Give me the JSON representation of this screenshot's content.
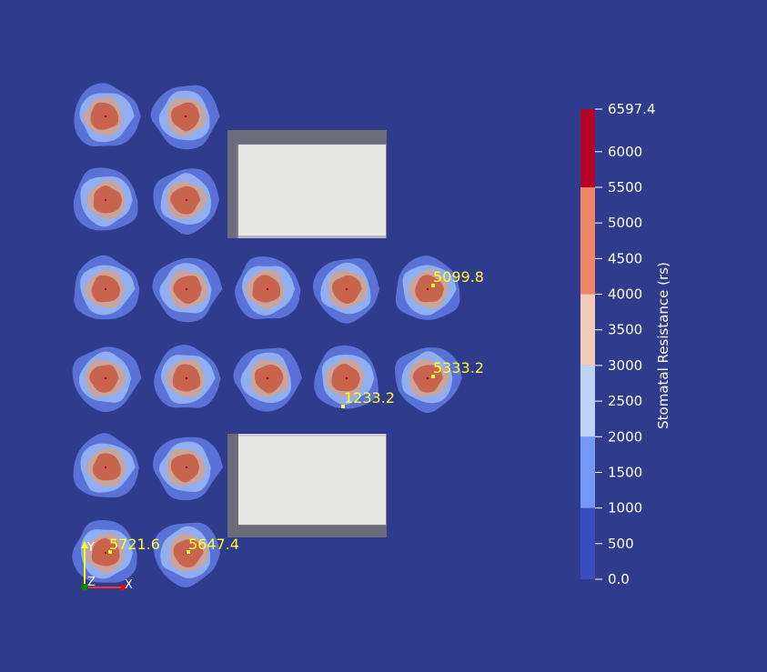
{
  "colors": {
    "background": "#2f3b8c",
    "probe_label": "#ffff33",
    "bands": [
      "#3b4cc0",
      "#7597f6",
      "#bed2f6",
      "#f2cbb7",
      "#ee8468",
      "#b40426"
    ]
  },
  "scene": {
    "object_type": "stomata-resistance-contour-field",
    "obstacles": [
      "rectangular-block",
      "rectangular-block"
    ],
    "probe_labels": [
      "5099.8",
      "5333.2",
      "1233.2",
      "5721.6",
      "5647.4"
    ]
  },
  "colorbar": {
    "title": "Stomatal Resistance (rs)",
    "range": [
      0.0,
      6597.4
    ],
    "band_edges": [
      0,
      1000,
      2000,
      3000,
      4000,
      5500,
      6597.4
    ],
    "ticks": [
      "6597.4",
      "6000",
      "5500",
      "5000",
      "4500",
      "4000",
      "3500",
      "3000",
      "2500",
      "2000",
      "1500",
      "1000",
      "500",
      "0.0"
    ],
    "tick_values": [
      6597.4,
      6000,
      5500,
      5000,
      4500,
      4000,
      3500,
      3000,
      2500,
      2000,
      1500,
      1000,
      500,
      0
    ]
  },
  "axes_widget": {
    "labels": [
      "Y",
      "Z",
      "X"
    ],
    "colors": [
      "#ffff00",
      "#00aa00",
      "#ff0000"
    ]
  }
}
